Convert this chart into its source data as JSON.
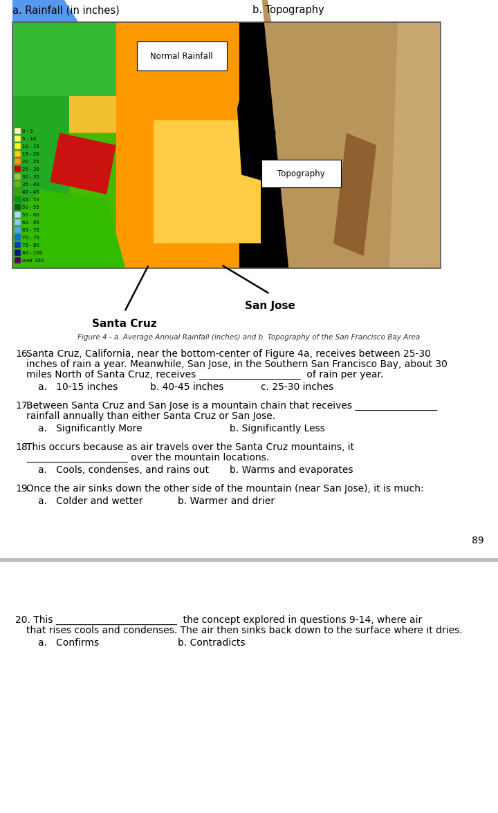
{
  "page_bg": "#ffffff",
  "title_a": "a. Rainfall (in inches)",
  "title_b": "b. Topography",
  "figure_caption": "Figure 4 - a. Average Annual Rainfall (inches) and b. Topography of the San Francisco Bay Area",
  "label_normal_rainfall": "Normal Rainfall",
  "label_topography": "Topography",
  "label_san_jose": "San Jose",
  "label_santa_cruz": "Santa Cruz",
  "legend_items": [
    [
      "0 - 5",
      "#ffffb3"
    ],
    [
      "5 - 10",
      "#ffff66"
    ],
    [
      "10 - 15",
      "#ffff00"
    ],
    [
      "15 - 20",
      "#ffcc00"
    ],
    [
      "20 - 25",
      "#ff9900"
    ],
    [
      "25 - 30",
      "#cc0000"
    ],
    [
      "30 - 35",
      "#99cc33"
    ],
    [
      "35 - 40",
      "#66bb00"
    ],
    [
      "40 - 45",
      "#33aa00"
    ],
    [
      "45 - 50",
      "#009900"
    ],
    [
      "50 - 55",
      "#006600"
    ],
    [
      "55 - 60",
      "#aaddff"
    ],
    [
      "60 - 65",
      "#88ccff"
    ],
    [
      "65 - 70",
      "#44aaff"
    ],
    [
      "70 - 75",
      "#0077cc"
    ],
    [
      "75 - 80",
      "#0044aa"
    ],
    [
      "80 - 100",
      "#001188"
    ],
    [
      "over 100",
      "#550055"
    ]
  ],
  "q16_num": "16.",
  "q16_text1": "Santa Cruz, California, near the bottom-center of Figure 4a, receives between 25-30",
  "q16_text2": "inches of rain a year. Meanwhile, San Jose, in the Southern San Francisco Bay, about 30",
  "q16_text3": "miles North of Santa Cruz, receives _____________________  of rain per year.",
  "q16_choices": [
    "a.   10-15 inches",
    "b. 40-45 inches",
    "c. 25-30 inches"
  ],
  "q17_num": "17.",
  "q17_text1": "Between Santa Cruz and San Jose is a mountain chain that receives _________________",
  "q17_text2": "rainfall annually than either Santa Cruz or San Jose.",
  "q17_choices": [
    "a.   Significantly More",
    "b. Significantly Less"
  ],
  "q18_num": "18.",
  "q18_text1": "This occurs because as air travels over the Santa Cruz mountains, it",
  "q18_text2": "_____________________ over the mountain locations.",
  "q18_choices": [
    "a.   Cools, condenses, and rains out",
    "b. Warms and evaporates"
  ],
  "q19_num": "19.",
  "q19_text1": "Once the air sinks down the other side of the mountain (near San Jose), it is much:",
  "q19_choices": [
    "a.   Colder and wetter",
    "b. Warmer and drier"
  ],
  "page_number": "89",
  "q20_text1": "20. This _________________________  the concept explored in questions 9-14, where air",
  "q20_text2": "that rises cools and condenses. The air then sinks back down to the surface where it dries.",
  "q20_choices": [
    "a.   Confirms",
    "b. Contradicts"
  ],
  "separator_color": "#bbbbbb"
}
